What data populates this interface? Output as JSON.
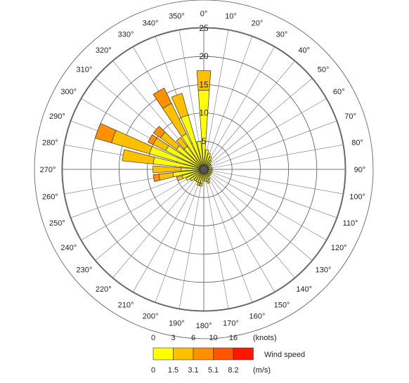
{
  "chart_data": {
    "type": "wind-rose",
    "radial_range": [
      0,
      25
    ],
    "radial_ticks": [
      5,
      10,
      15,
      20,
      25
    ],
    "direction_labels": [
      "0°",
      "10°",
      "20°",
      "30°",
      "40°",
      "50°",
      "60°",
      "70°",
      "80°",
      "90°",
      "100°",
      "110°",
      "120°",
      "130°",
      "140°",
      "150°",
      "160°",
      "170°",
      "180°",
      "190°",
      "200°",
      "210°",
      "220°",
      "230°",
      "240°",
      "250°",
      "260°",
      "270°",
      "280°",
      "290°",
      "300°",
      "310°",
      "320°",
      "330°",
      "340°",
      "350°"
    ],
    "speed_bins_knots": [
      "0",
      "3",
      "6",
      "10",
      "16"
    ],
    "speed_bins_ms": [
      "0",
      "1.5",
      "3.1",
      "5.1",
      "8.2"
    ],
    "units_knots": "(knots)",
    "units_ms": "(m/s)",
    "legend_title": "Wind speed",
    "colors": [
      "#FFFF00",
      "#FFC000",
      "#FF9000",
      "#FF5500",
      "#FF1500"
    ],
    "sectors": [
      {
        "direction": 0,
        "bins": [
          14,
          17.5
        ]
      },
      {
        "direction": 10,
        "bins": [
          3.5
        ]
      },
      {
        "direction": 20,
        "bins": [
          3
        ]
      },
      {
        "direction": 30,
        "bins": [
          2.5
        ]
      },
      {
        "direction": 40,
        "bins": [
          2
        ]
      },
      {
        "direction": 50,
        "bins": [
          1.5
        ]
      },
      {
        "direction": 60,
        "bins": [
          1.5
        ]
      },
      {
        "direction": 70,
        "bins": [
          1
        ]
      },
      {
        "direction": 80,
        "bins": [
          1.5
        ]
      },
      {
        "direction": 90,
        "bins": [
          1.5
        ]
      },
      {
        "direction": 100,
        "bins": [
          1.5
        ]
      },
      {
        "direction": 110,
        "bins": [
          1.5
        ]
      },
      {
        "direction": 120,
        "bins": [
          1.5
        ]
      },
      {
        "direction": 130,
        "bins": [
          1.5
        ]
      },
      {
        "direction": 140,
        "bins": [
          1.5
        ]
      },
      {
        "direction": 150,
        "bins": [
          2
        ]
      },
      {
        "direction": 160,
        "bins": [
          2.2,
          2.6
        ]
      },
      {
        "direction": 170,
        "bins": [
          2.2
        ]
      },
      {
        "direction": 180,
        "bins": [
          2
        ]
      },
      {
        "direction": 190,
        "bins": [
          2.5,
          3
        ]
      },
      {
        "direction": 200,
        "bins": [
          2.5,
          3
        ]
      },
      {
        "direction": 210,
        "bins": [
          2.5
        ]
      },
      {
        "direction": 220,
        "bins": [
          2.5
        ]
      },
      {
        "direction": 230,
        "bins": [
          3
        ]
      },
      {
        "direction": 240,
        "bins": [
          3.5
        ]
      },
      {
        "direction": 250,
        "bins": [
          4,
          5
        ]
      },
      {
        "direction": 260,
        "bins": [
          5.5,
          8,
          9
        ]
      },
      {
        "direction": 270,
        "bins": [
          4,
          9
        ]
      },
      {
        "direction": 280,
        "bins": [
          9,
          14.5
        ]
      },
      {
        "direction": 290,
        "bins": [
          10,
          17,
          20
        ]
      },
      {
        "direction": 300,
        "bins": [
          7.5,
          10,
          11
        ]
      },
      {
        "direction": 310,
        "bins": [
          6,
          9.5,
          11
        ]
      },
      {
        "direction": 320,
        "bins": [
          5,
          7
        ]
      },
      {
        "direction": 330,
        "bins": [
          7,
          13,
          16
        ]
      },
      {
        "direction": 340,
        "bins": [
          10,
          14
        ]
      },
      {
        "direction": 350,
        "bins": [
          5
        ]
      }
    ]
  }
}
